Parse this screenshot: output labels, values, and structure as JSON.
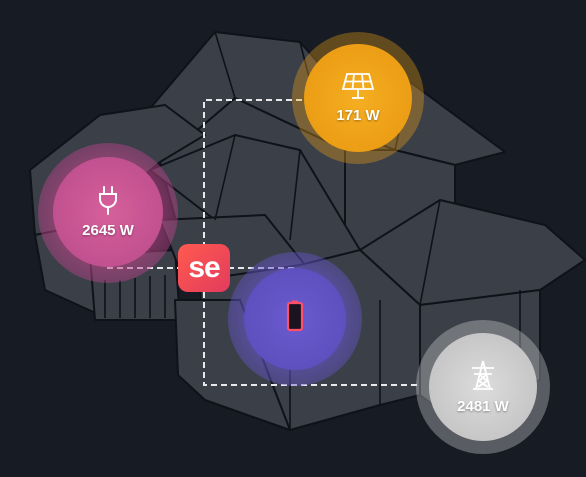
{
  "brand": {
    "logo_text": "se",
    "accent": "#f0484f"
  },
  "solar": {
    "value": "171 W",
    "icon": "solar-panel-icon",
    "color": "#f0a418"
  },
  "consumption": {
    "value": "2645 W",
    "icon": "plug-icon",
    "color": "#c84a8a"
  },
  "battery": {
    "value": "",
    "icon": "battery-icon",
    "color": "#6b56c8"
  },
  "grid": {
    "value": "2481 W",
    "icon": "power-tower-icon",
    "color": "#d6d6d6"
  }
}
